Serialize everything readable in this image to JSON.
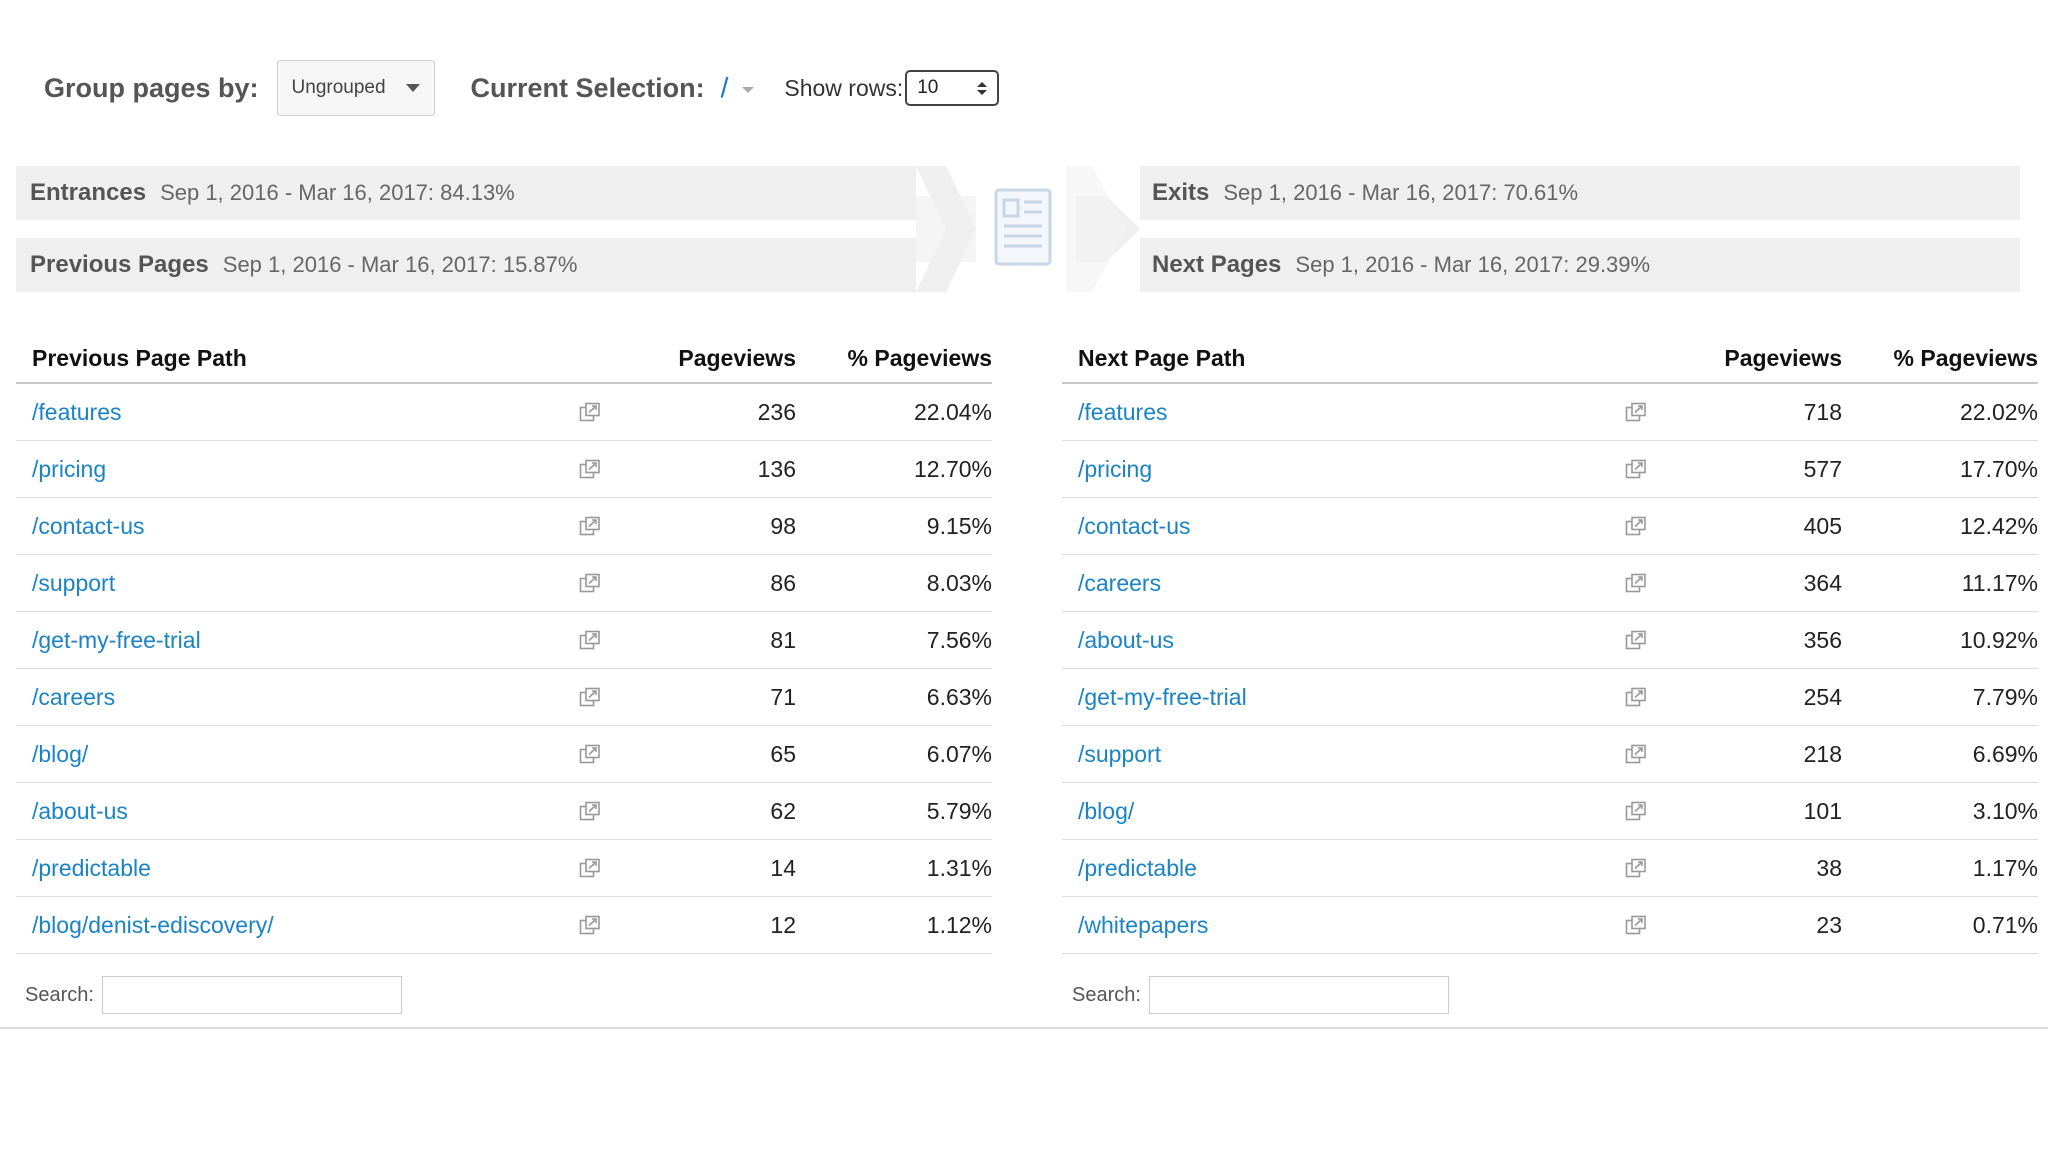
{
  "controls": {
    "group_label": "Group pages by:",
    "group_value": "Ungrouped",
    "selection_label": "Current Selection:",
    "selection_value": "/",
    "rows_label": "Show rows:",
    "rows_value": "10"
  },
  "summary": {
    "entrances": {
      "label": "Entrances",
      "text": "Sep 1, 2016 - Mar 16, 2017: 84.13%"
    },
    "previous": {
      "label": "Previous Pages",
      "text": "Sep 1, 2016 - Mar 16, 2017: 15.87%"
    },
    "exits": {
      "label": "Exits",
      "text": "Sep 1, 2016 - Mar 16, 2017: 70.61%"
    },
    "next": {
      "label": "Next Pages",
      "text": "Sep 1, 2016 - Mar 16, 2017: 29.39%"
    },
    "center_icon": "page-document-icon"
  },
  "prev_table": {
    "headers": [
      "Previous Page Path",
      "Pageviews",
      "% Pageviews"
    ],
    "rows": [
      {
        "path": "/features",
        "pageviews": "236",
        "pct": "22.04%"
      },
      {
        "path": "/pricing",
        "pageviews": "136",
        "pct": "12.70%"
      },
      {
        "path": "/contact-us",
        "pageviews": "98",
        "pct": "9.15%"
      },
      {
        "path": "/support",
        "pageviews": "86",
        "pct": "8.03%"
      },
      {
        "path": "/get-my-free-trial",
        "pageviews": "81",
        "pct": "7.56%"
      },
      {
        "path": "/careers",
        "pageviews": "71",
        "pct": "6.63%"
      },
      {
        "path": "/blog/",
        "pageviews": "65",
        "pct": "6.07%"
      },
      {
        "path": "/about-us",
        "pageviews": "62",
        "pct": "5.79%"
      },
      {
        "path": "/predictable",
        "pageviews": "14",
        "pct": "1.31%"
      },
      {
        "path": "/blog/denist-ediscovery/",
        "pageviews": "12",
        "pct": "1.12%"
      }
    ],
    "search_label": "Search:"
  },
  "next_table": {
    "headers": [
      "Next Page Path",
      "Pageviews",
      "% Pageviews"
    ],
    "rows": [
      {
        "path": "/features",
        "pageviews": "718",
        "pct": "22.02%"
      },
      {
        "path": "/pricing",
        "pageviews": "577",
        "pct": "17.70%"
      },
      {
        "path": "/contact-us",
        "pageviews": "405",
        "pct": "12.42%"
      },
      {
        "path": "/careers",
        "pageviews": "364",
        "pct": "11.17%"
      },
      {
        "path": "/about-us",
        "pageviews": "356",
        "pct": "10.92%"
      },
      {
        "path": "/get-my-free-trial",
        "pageviews": "254",
        "pct": "7.79%"
      },
      {
        "path": "/support",
        "pageviews": "218",
        "pct": "6.69%"
      },
      {
        "path": "/blog/",
        "pageviews": "101",
        "pct": "3.10%"
      },
      {
        "path": "/predictable",
        "pageviews": "38",
        "pct": "1.17%"
      },
      {
        "path": "/whitepapers",
        "pageviews": "23",
        "pct": "0.71%"
      }
    ],
    "search_label": "Search:"
  },
  "colors": {
    "link": "#1a83c6",
    "band": "#efefef"
  }
}
